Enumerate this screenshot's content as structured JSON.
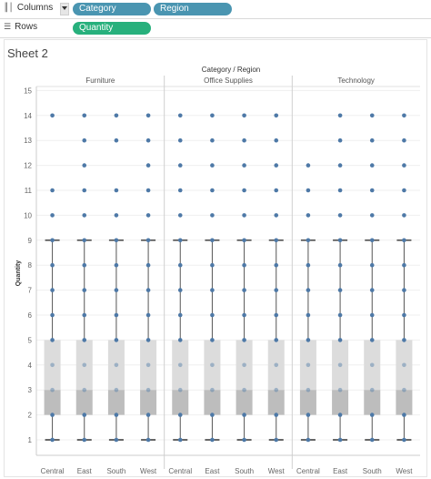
{
  "shelves": {
    "columns_label": "Columns",
    "columns_icon": "columns-icon",
    "columns_pills": [
      "Category",
      "Region"
    ],
    "rows_label": "Rows",
    "rows_icon": "rows-icon",
    "rows_pills": [
      "Quantity"
    ]
  },
  "sheet_title": "Sheet 2",
  "colors": {
    "dimension_pill": "#4a95b1",
    "measure_pill": "#27b07c",
    "mark": "#4e79a7",
    "box_upper": "#dcdcdc",
    "box_lower": "#bdbdbd"
  },
  "chart_data": {
    "type": "box",
    "column_header": "Category / Region",
    "ylabel": "Quantity",
    "ylim": [
      0,
      15
    ],
    "yticks": [
      1,
      2,
      3,
      4,
      5,
      6,
      7,
      8,
      9,
      10,
      11,
      12,
      13,
      14,
      15
    ],
    "groups": [
      "Furniture",
      "Office Supplies",
      "Technology"
    ],
    "regions": [
      "Central",
      "East",
      "South",
      "West"
    ],
    "panels": [
      {
        "group": "Furniture",
        "region": "Central",
        "q1": 2,
        "median": 3,
        "q3": 5,
        "whisker_low": 1,
        "whisker_high": 9,
        "points": [
          1,
          2,
          3,
          4,
          5,
          6,
          7,
          8,
          9,
          10,
          11,
          14
        ]
      },
      {
        "group": "Furniture",
        "region": "East",
        "q1": 2,
        "median": 3,
        "q3": 5,
        "whisker_low": 1,
        "whisker_high": 9,
        "points": [
          1,
          2,
          3,
          4,
          5,
          6,
          7,
          8,
          9,
          10,
          11,
          12,
          13,
          14
        ]
      },
      {
        "group": "Furniture",
        "region": "South",
        "q1": 2,
        "median": 3,
        "q3": 5,
        "whisker_low": 1,
        "whisker_high": 9,
        "points": [
          1,
          2,
          3,
          4,
          5,
          6,
          7,
          8,
          9,
          10,
          11,
          13,
          14
        ]
      },
      {
        "group": "Furniture",
        "region": "West",
        "q1": 2,
        "median": 3,
        "q3": 5,
        "whisker_low": 1,
        "whisker_high": 9,
        "points": [
          1,
          2,
          3,
          4,
          5,
          6,
          7,
          8,
          9,
          10,
          11,
          12,
          13,
          14
        ]
      },
      {
        "group": "Office Supplies",
        "region": "Central",
        "q1": 2,
        "median": 3,
        "q3": 5,
        "whisker_low": 1,
        "whisker_high": 9,
        "points": [
          1,
          2,
          3,
          4,
          5,
          6,
          7,
          8,
          9,
          10,
          11,
          12,
          13,
          14
        ]
      },
      {
        "group": "Office Supplies",
        "region": "East",
        "q1": 2,
        "median": 3,
        "q3": 5,
        "whisker_low": 1,
        "whisker_high": 9,
        "points": [
          1,
          2,
          3,
          4,
          5,
          6,
          7,
          8,
          9,
          10,
          11,
          12,
          13,
          14
        ]
      },
      {
        "group": "Office Supplies",
        "region": "South",
        "q1": 2,
        "median": 3,
        "q3": 5,
        "whisker_low": 1,
        "whisker_high": 9,
        "points": [
          1,
          2,
          3,
          4,
          5,
          6,
          7,
          8,
          9,
          10,
          11,
          12,
          13,
          14
        ]
      },
      {
        "group": "Office Supplies",
        "region": "West",
        "q1": 2,
        "median": 3,
        "q3": 5,
        "whisker_low": 1,
        "whisker_high": 9,
        "points": [
          1,
          2,
          3,
          4,
          5,
          6,
          7,
          8,
          9,
          10,
          11,
          12,
          13,
          14
        ]
      },
      {
        "group": "Technology",
        "region": "Central",
        "q1": 2,
        "median": 3,
        "q3": 5,
        "whisker_low": 1,
        "whisker_high": 9,
        "points": [
          1,
          2,
          3,
          4,
          5,
          6,
          7,
          8,
          9,
          10,
          11,
          12
        ]
      },
      {
        "group": "Technology",
        "region": "East",
        "q1": 2,
        "median": 3,
        "q3": 5,
        "whisker_low": 1,
        "whisker_high": 9,
        "points": [
          1,
          2,
          3,
          4,
          5,
          6,
          7,
          8,
          9,
          10,
          11,
          12,
          13,
          14
        ]
      },
      {
        "group": "Technology",
        "region": "South",
        "q1": 2,
        "median": 3,
        "q3": 5,
        "whisker_low": 1,
        "whisker_high": 9,
        "points": [
          1,
          2,
          3,
          4,
          5,
          6,
          7,
          8,
          9,
          10,
          11,
          12,
          13,
          14
        ]
      },
      {
        "group": "Technology",
        "region": "West",
        "q1": 2,
        "median": 3,
        "q3": 5,
        "whisker_low": 1,
        "whisker_high": 9,
        "points": [
          1,
          2,
          3,
          4,
          5,
          6,
          7,
          8,
          9,
          10,
          11,
          12,
          13,
          14
        ]
      }
    ]
  }
}
